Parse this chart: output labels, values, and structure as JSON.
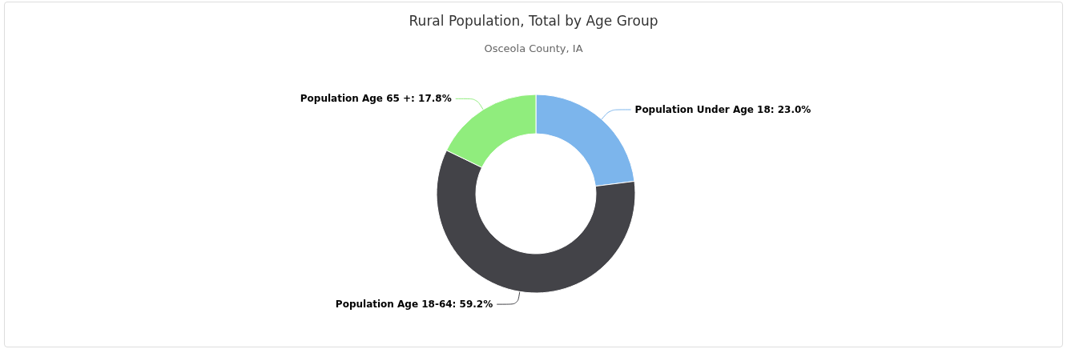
{
  "chart_data": {
    "type": "donut",
    "title": "Rural Population, Total by Age Group",
    "subtitle": "Osceola County, IA",
    "categories": [
      "Population Under Age 18",
      "Population Age 18-64",
      "Population Age 65 +"
    ],
    "values": [
      23.0,
      59.2,
      17.8
    ],
    "colors": [
      "#7cb5ec",
      "#434348",
      "#90ed7d"
    ],
    "value_labels": [
      "23.0%",
      "59.2%",
      "17.8%"
    ]
  }
}
